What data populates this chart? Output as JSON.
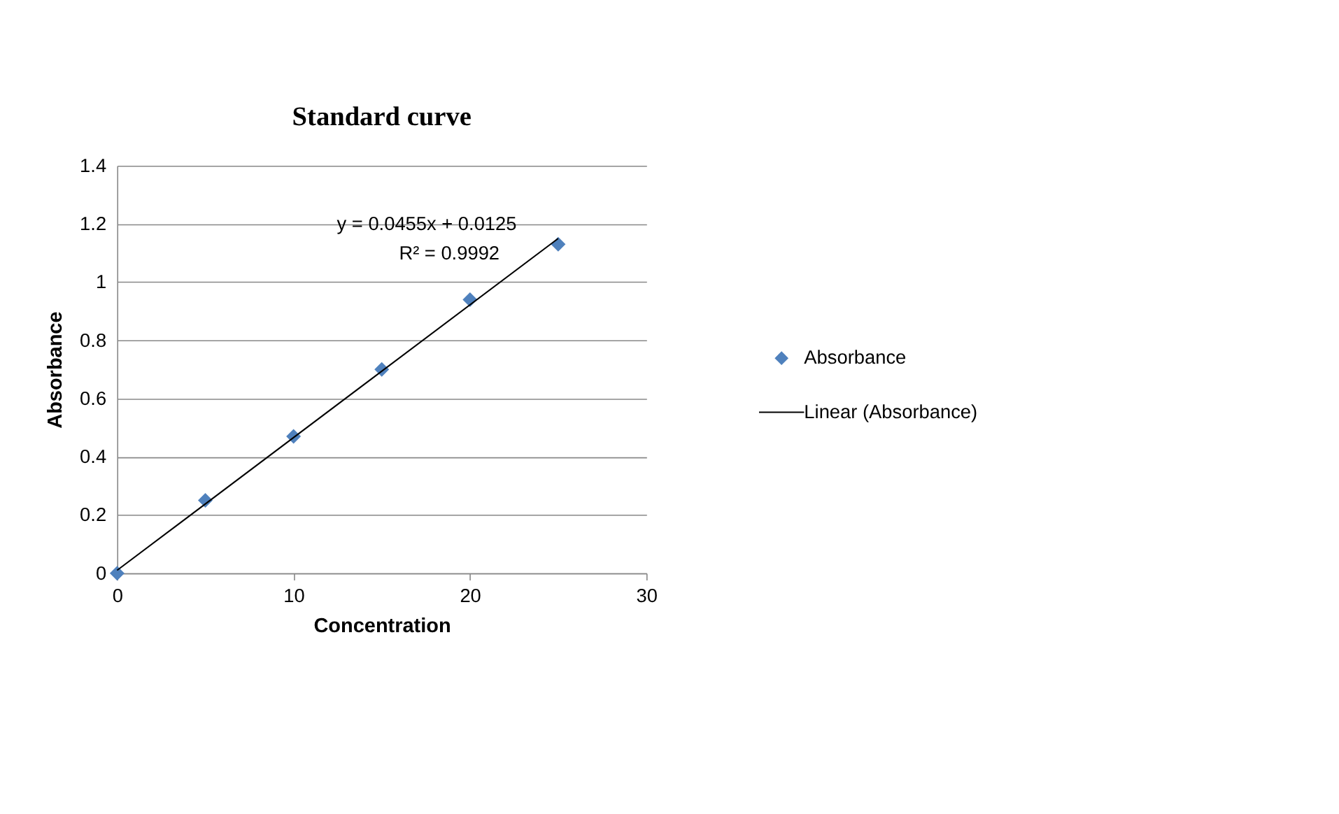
{
  "chart_data": {
    "type": "scatter",
    "title": "Standard curve",
    "xlabel": "Concentration",
    "ylabel": "Absorbance",
    "series": [
      {
        "name": "Absorbance",
        "color": "#4f81bd",
        "marker": "diamond",
        "x": [
          0,
          5,
          10,
          15,
          20,
          25
        ],
        "values": [
          0,
          0.25,
          0.47,
          0.7,
          0.94,
          1.13
        ]
      },
      {
        "name": "Linear (Absorbance)",
        "type": "line",
        "color": "#000000",
        "line_style": "solid",
        "x": [
          0,
          25
        ],
        "values": [
          0.01,
          1.15
        ]
      }
    ],
    "xlim": [
      0,
      30
    ],
    "xticks": [
      0,
      10,
      20,
      30
    ],
    "ylim": [
      0,
      1.4
    ],
    "yticks": [
      0,
      0.2,
      0.4,
      0.6,
      0.8,
      1,
      1.2,
      1.4
    ],
    "grid": "y",
    "legend": "right",
    "annotations": [
      "y = 0.0455x + 0.0125",
      "R² = 0.9992"
    ]
  }
}
